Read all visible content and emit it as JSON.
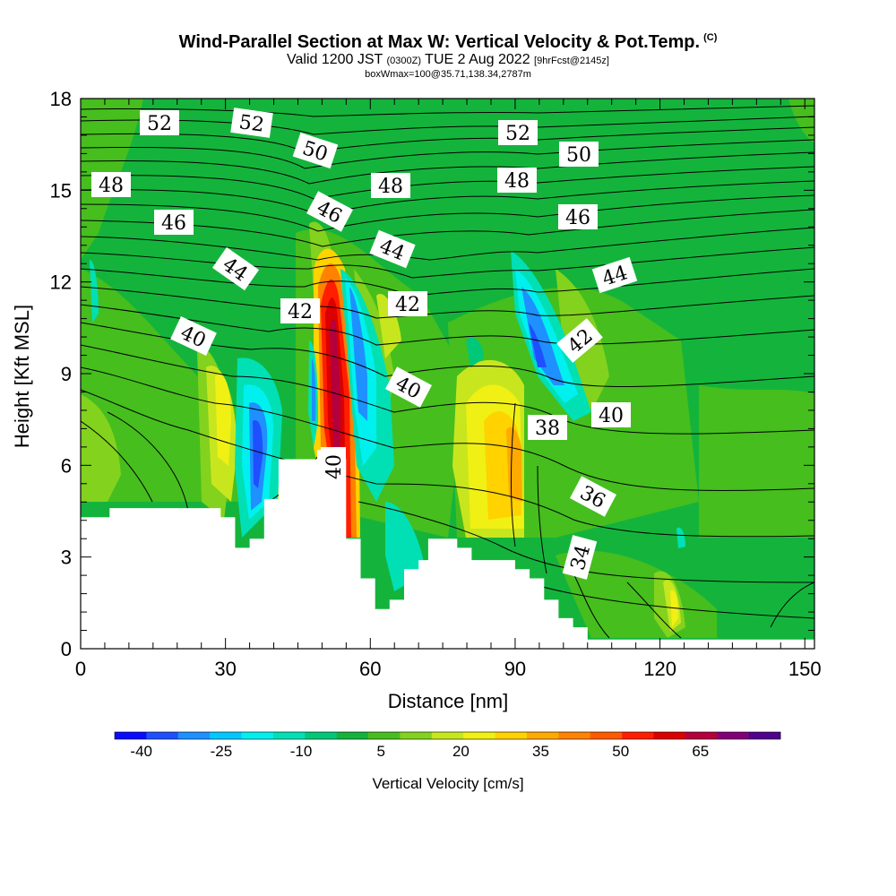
{
  "title": {
    "main": "Wind-Parallel Section at Max W: Vertical Velocity & Pot.Temp.",
    "copyright": "(C)",
    "valid_pre": "Valid 1200 JST",
    "utc": "(0300Z)",
    "valid_post": "TUE 2 Aug 2022",
    "forecast": "[9hrFcst@2145z]",
    "box_info": "boxWmax=100@35.71,138.34,2787m"
  },
  "chart_data": {
    "type": "contour",
    "title": "Wind-Parallel Section at Max W: Vertical Velocity & Pot.Temp.",
    "xlabel": "Distance [nm]",
    "ylabel": "Height [Kft MSL]",
    "xlim": [
      0,
      152
    ],
    "ylim": [
      0,
      18
    ],
    "x_ticks": [
      "0",
      "30",
      "60",
      "90",
      "120",
      "150"
    ],
    "y_ticks": [
      "0",
      "3",
      "6",
      "9",
      "12",
      "15",
      "18"
    ],
    "colorbar": {
      "label": "Vertical Velocity [cm/s]",
      "tick_labels": [
        "-40",
        "-25",
        "-10",
        "5",
        "20",
        "35",
        "50",
        "65"
      ],
      "colors": [
        "#0a0aff",
        "#1e50ff",
        "#1e90ff",
        "#00c8ff",
        "#00f0f0",
        "#00e0b4",
        "#00c878",
        "#14b43c",
        "#46be1e",
        "#82d21e",
        "#c8e61e",
        "#f0f014",
        "#ffd200",
        "#ffaa00",
        "#ff8200",
        "#ff5a00",
        "#ff1e00",
        "#dc0000",
        "#b4003c",
        "#820078",
        "#50008c"
      ]
    },
    "theta_contour_labels": [
      "52",
      "52",
      "50",
      "52",
      "50",
      "48",
      "48",
      "48",
      "46",
      "46",
      "46",
      "44",
      "44",
      "44",
      "42",
      "42",
      "42",
      "40",
      "40",
      "40",
      "40",
      "38",
      "36",
      "34"
    ],
    "terrain_kft": [
      [
        0,
        4.3
      ],
      [
        6,
        4.3
      ],
      [
        6,
        4.6
      ],
      [
        29,
        4.6
      ],
      [
        29,
        4.3
      ],
      [
        32,
        4.3
      ],
      [
        32,
        3.3
      ],
      [
        35,
        3.3
      ],
      [
        35,
        3.6
      ],
      [
        38,
        3.6
      ],
      [
        38,
        4.9
      ],
      [
        41,
        4.9
      ],
      [
        41,
        6.2
      ],
      [
        49,
        6.2
      ],
      [
        49,
        6.5
      ],
      [
        52,
        6.5
      ],
      [
        55,
        6.2
      ],
      [
        55,
        3.6
      ],
      [
        58,
        3.6
      ],
      [
        58,
        2.3
      ],
      [
        61,
        2.3
      ],
      [
        61,
        1.3
      ],
      [
        64,
        1.3
      ],
      [
        64,
        1.6
      ],
      [
        67,
        1.6
      ],
      [
        67,
        2.6
      ],
      [
        70,
        2.6
      ],
      [
        70,
        2.9
      ],
      [
        72,
        2.9
      ],
      [
        72,
        3.6
      ],
      [
        78,
        3.6
      ],
      [
        78,
        3.3
      ],
      [
        81,
        3.3
      ],
      [
        81,
        2.9
      ],
      [
        90,
        2.9
      ],
      [
        90,
        2.6
      ],
      [
        93,
        2.6
      ],
      [
        93,
        2.3
      ],
      [
        96,
        2.3
      ],
      [
        96,
        1.6
      ],
      [
        99,
        1.6
      ],
      [
        99,
        1.0
      ],
      [
        102,
        1.0
      ],
      [
        102,
        0.7
      ],
      [
        105,
        0.7
      ],
      [
        105,
        0.3
      ],
      [
        152,
        0.3
      ]
    ]
  }
}
